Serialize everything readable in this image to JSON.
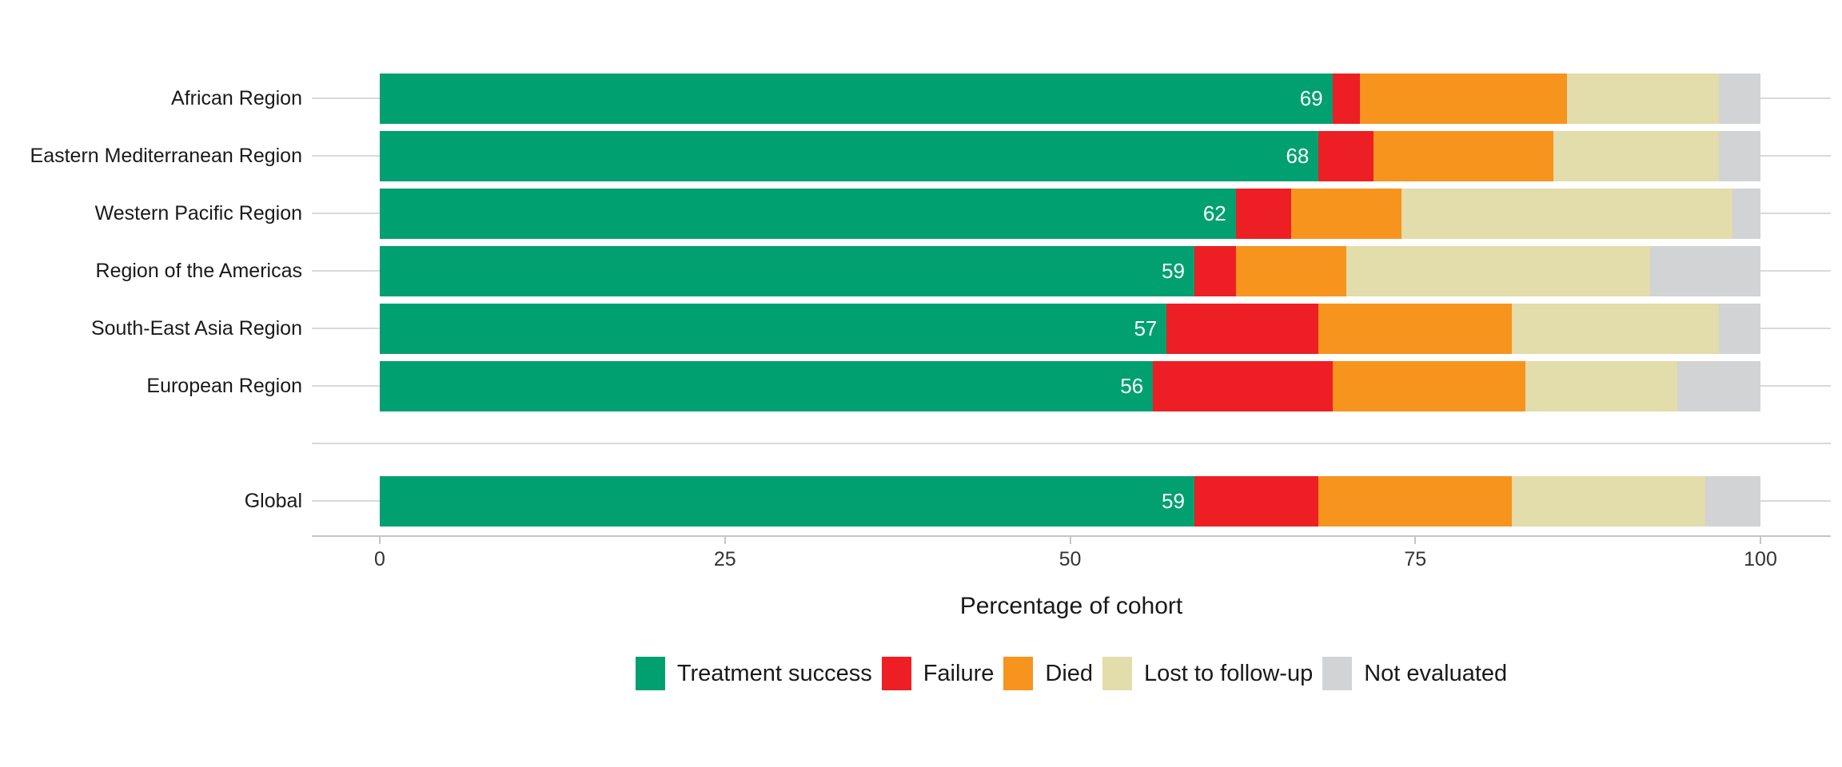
{
  "chart_data": {
    "type": "bar",
    "orientation": "horizontal-stacked",
    "title": "",
    "xlabel": "Percentage of cohort",
    "ylabel": "",
    "xlim": [
      0,
      100
    ],
    "x_ticks": [
      0,
      25,
      50,
      75,
      100
    ],
    "grid": "category-lines-only",
    "legend_position": "bottom",
    "separator_before_category": "Global",
    "categories": [
      "African Region",
      "Eastern Mediterranean Region",
      "Western Pacific Region",
      "Region of the Americas",
      "South-East Asia Region",
      "European Region",
      "Global"
    ],
    "series": [
      {
        "name": "Treatment success",
        "color": "#00a070",
        "values": [
          69,
          68,
          62,
          59,
          57,
          56,
          59
        ]
      },
      {
        "name": "Failure",
        "color": "#ed1f24",
        "values": [
          2,
          4,
          4,
          3,
          11,
          13,
          9
        ]
      },
      {
        "name": "Died",
        "color": "#f7941e",
        "values": [
          15,
          13,
          8,
          8,
          14,
          14,
          14
        ]
      },
      {
        "name": "Lost to follow-up",
        "color": "#e3dcab",
        "values": [
          11,
          12,
          24,
          22,
          15,
          11,
          14
        ]
      },
      {
        "name": "Not evaluated",
        "color": "#d1d3d4",
        "values": [
          3,
          3,
          2,
          8,
          3,
          6,
          4
        ]
      }
    ],
    "bar_labels": [
      "69",
      "68",
      "62",
      "59",
      "57",
      "56",
      "59"
    ],
    "bar_label_series": "Treatment success",
    "bar_label_color": "#ffffff"
  }
}
